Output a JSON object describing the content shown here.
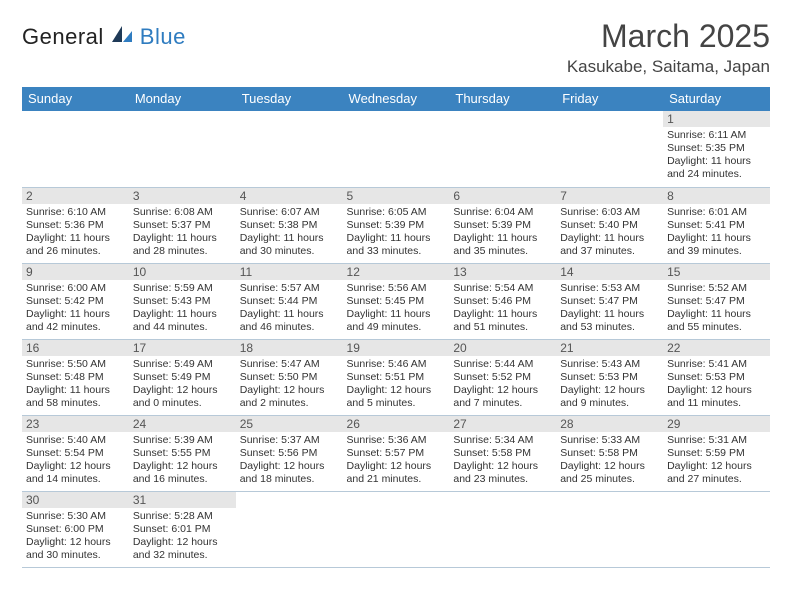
{
  "brand": {
    "name_a": "General",
    "name_b": "Blue"
  },
  "title": "March 2025",
  "location": "Kasukabe, Saitama, Japan",
  "headers": [
    "Sunday",
    "Monday",
    "Tuesday",
    "Wednesday",
    "Thursday",
    "Friday",
    "Saturday"
  ],
  "colors": {
    "header_bg": "#3b83c0",
    "header_fg": "#ffffff",
    "daynum_bg": "#e6e6e6",
    "row_divider": "#3b83c0"
  },
  "weeks": [
    [
      {
        "n": "",
        "sr": "",
        "ss": "",
        "dl": ""
      },
      {
        "n": "",
        "sr": "",
        "ss": "",
        "dl": ""
      },
      {
        "n": "",
        "sr": "",
        "ss": "",
        "dl": ""
      },
      {
        "n": "",
        "sr": "",
        "ss": "",
        "dl": ""
      },
      {
        "n": "",
        "sr": "",
        "ss": "",
        "dl": ""
      },
      {
        "n": "",
        "sr": "",
        "ss": "",
        "dl": ""
      },
      {
        "n": "1",
        "sr": "Sunrise: 6:11 AM",
        "ss": "Sunset: 5:35 PM",
        "dl": "Daylight: 11 hours and 24 minutes."
      }
    ],
    [
      {
        "n": "2",
        "sr": "Sunrise: 6:10 AM",
        "ss": "Sunset: 5:36 PM",
        "dl": "Daylight: 11 hours and 26 minutes."
      },
      {
        "n": "3",
        "sr": "Sunrise: 6:08 AM",
        "ss": "Sunset: 5:37 PM",
        "dl": "Daylight: 11 hours and 28 minutes."
      },
      {
        "n": "4",
        "sr": "Sunrise: 6:07 AM",
        "ss": "Sunset: 5:38 PM",
        "dl": "Daylight: 11 hours and 30 minutes."
      },
      {
        "n": "5",
        "sr": "Sunrise: 6:05 AM",
        "ss": "Sunset: 5:39 PM",
        "dl": "Daylight: 11 hours and 33 minutes."
      },
      {
        "n": "6",
        "sr": "Sunrise: 6:04 AM",
        "ss": "Sunset: 5:39 PM",
        "dl": "Daylight: 11 hours and 35 minutes."
      },
      {
        "n": "7",
        "sr": "Sunrise: 6:03 AM",
        "ss": "Sunset: 5:40 PM",
        "dl": "Daylight: 11 hours and 37 minutes."
      },
      {
        "n": "8",
        "sr": "Sunrise: 6:01 AM",
        "ss": "Sunset: 5:41 PM",
        "dl": "Daylight: 11 hours and 39 minutes."
      }
    ],
    [
      {
        "n": "9",
        "sr": "Sunrise: 6:00 AM",
        "ss": "Sunset: 5:42 PM",
        "dl": "Daylight: 11 hours and 42 minutes."
      },
      {
        "n": "10",
        "sr": "Sunrise: 5:59 AM",
        "ss": "Sunset: 5:43 PM",
        "dl": "Daylight: 11 hours and 44 minutes."
      },
      {
        "n": "11",
        "sr": "Sunrise: 5:57 AM",
        "ss": "Sunset: 5:44 PM",
        "dl": "Daylight: 11 hours and 46 minutes."
      },
      {
        "n": "12",
        "sr": "Sunrise: 5:56 AM",
        "ss": "Sunset: 5:45 PM",
        "dl": "Daylight: 11 hours and 49 minutes."
      },
      {
        "n": "13",
        "sr": "Sunrise: 5:54 AM",
        "ss": "Sunset: 5:46 PM",
        "dl": "Daylight: 11 hours and 51 minutes."
      },
      {
        "n": "14",
        "sr": "Sunrise: 5:53 AM",
        "ss": "Sunset: 5:47 PM",
        "dl": "Daylight: 11 hours and 53 minutes."
      },
      {
        "n": "15",
        "sr": "Sunrise: 5:52 AM",
        "ss": "Sunset: 5:47 PM",
        "dl": "Daylight: 11 hours and 55 minutes."
      }
    ],
    [
      {
        "n": "16",
        "sr": "Sunrise: 5:50 AM",
        "ss": "Sunset: 5:48 PM",
        "dl": "Daylight: 11 hours and 58 minutes."
      },
      {
        "n": "17",
        "sr": "Sunrise: 5:49 AM",
        "ss": "Sunset: 5:49 PM",
        "dl": "Daylight: 12 hours and 0 minutes."
      },
      {
        "n": "18",
        "sr": "Sunrise: 5:47 AM",
        "ss": "Sunset: 5:50 PM",
        "dl": "Daylight: 12 hours and 2 minutes."
      },
      {
        "n": "19",
        "sr": "Sunrise: 5:46 AM",
        "ss": "Sunset: 5:51 PM",
        "dl": "Daylight: 12 hours and 5 minutes."
      },
      {
        "n": "20",
        "sr": "Sunrise: 5:44 AM",
        "ss": "Sunset: 5:52 PM",
        "dl": "Daylight: 12 hours and 7 minutes."
      },
      {
        "n": "21",
        "sr": "Sunrise: 5:43 AM",
        "ss": "Sunset: 5:53 PM",
        "dl": "Daylight: 12 hours and 9 minutes."
      },
      {
        "n": "22",
        "sr": "Sunrise: 5:41 AM",
        "ss": "Sunset: 5:53 PM",
        "dl": "Daylight: 12 hours and 11 minutes."
      }
    ],
    [
      {
        "n": "23",
        "sr": "Sunrise: 5:40 AM",
        "ss": "Sunset: 5:54 PM",
        "dl": "Daylight: 12 hours and 14 minutes."
      },
      {
        "n": "24",
        "sr": "Sunrise: 5:39 AM",
        "ss": "Sunset: 5:55 PM",
        "dl": "Daylight: 12 hours and 16 minutes."
      },
      {
        "n": "25",
        "sr": "Sunrise: 5:37 AM",
        "ss": "Sunset: 5:56 PM",
        "dl": "Daylight: 12 hours and 18 minutes."
      },
      {
        "n": "26",
        "sr": "Sunrise: 5:36 AM",
        "ss": "Sunset: 5:57 PM",
        "dl": "Daylight: 12 hours and 21 minutes."
      },
      {
        "n": "27",
        "sr": "Sunrise: 5:34 AM",
        "ss": "Sunset: 5:58 PM",
        "dl": "Daylight: 12 hours and 23 minutes."
      },
      {
        "n": "28",
        "sr": "Sunrise: 5:33 AM",
        "ss": "Sunset: 5:58 PM",
        "dl": "Daylight: 12 hours and 25 minutes."
      },
      {
        "n": "29",
        "sr": "Sunrise: 5:31 AM",
        "ss": "Sunset: 5:59 PM",
        "dl": "Daylight: 12 hours and 27 minutes."
      }
    ],
    [
      {
        "n": "30",
        "sr": "Sunrise: 5:30 AM",
        "ss": "Sunset: 6:00 PM",
        "dl": "Daylight: 12 hours and 30 minutes."
      },
      {
        "n": "31",
        "sr": "Sunrise: 5:28 AM",
        "ss": "Sunset: 6:01 PM",
        "dl": "Daylight: 12 hours and 32 minutes."
      },
      {
        "n": "",
        "sr": "",
        "ss": "",
        "dl": ""
      },
      {
        "n": "",
        "sr": "",
        "ss": "",
        "dl": ""
      },
      {
        "n": "",
        "sr": "",
        "ss": "",
        "dl": ""
      },
      {
        "n": "",
        "sr": "",
        "ss": "",
        "dl": ""
      },
      {
        "n": "",
        "sr": "",
        "ss": "",
        "dl": ""
      }
    ]
  ]
}
